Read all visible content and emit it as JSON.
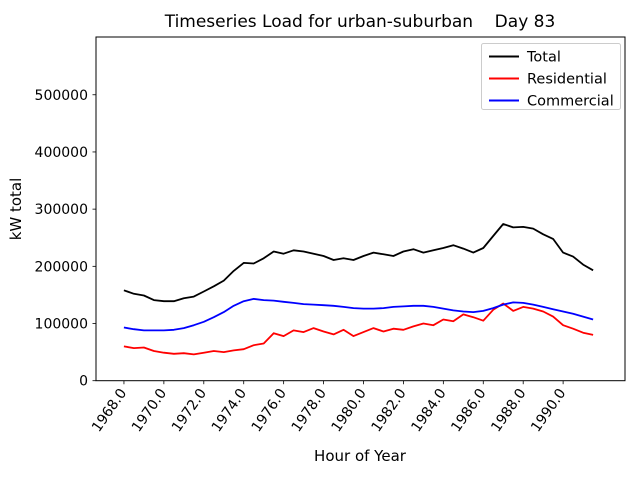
{
  "chart_data": {
    "type": "line",
    "title": "Timeseries Load for urban-suburban    Day 83",
    "xlabel": "Hour of Year",
    "ylabel": "kW total",
    "xlim": [
      1966.6,
      1993.1
    ],
    "ylim": [
      0,
      601000
    ],
    "grid": false,
    "legend": {
      "position": "upper right",
      "entries": [
        "Total",
        "Residential",
        "Commercial"
      ]
    },
    "x": [
      1968,
      1968.5,
      1969,
      1969.5,
      1970,
      1970.5,
      1971,
      1971.5,
      1972,
      1972.5,
      1973,
      1973.5,
      1974,
      1974.5,
      1975,
      1975.5,
      1976,
      1976.5,
      1977,
      1977.5,
      1978,
      1978.5,
      1979,
      1979.5,
      1980,
      1980.5,
      1981,
      1981.5,
      1982,
      1982.5,
      1983,
      1983.5,
      1984,
      1984.5,
      1985,
      1985.5,
      1986,
      1986.5,
      1987,
      1987.5,
      1988,
      1988.5,
      1989,
      1989.5,
      1990,
      1990.5,
      1991,
      1991.5
    ],
    "series": [
      {
        "name": "Total",
        "color": "#000000",
        "values": [
          158000,
          152000,
          149000,
          141000,
          139000,
          139000,
          144000,
          147000,
          156000,
          165000,
          175000,
          192000,
          206000,
          205000,
          214000,
          226000,
          222000,
          228000,
          226000,
          222000,
          218000,
          211000,
          214000,
          211000,
          218000,
          224000,
          221000,
          218000,
          226000,
          230000,
          224000,
          228000,
          232000,
          237000,
          231000,
          224000,
          232000,
          253000,
          274000,
          268000,
          269000,
          266000,
          256000,
          248000,
          224000,
          217000,
          203000,
          193000
        ]
      },
      {
        "name": "Residential",
        "color": "#ff0000",
        "values": [
          60000,
          57000,
          58000,
          52000,
          49000,
          47000,
          48000,
          46000,
          49000,
          52000,
          50000,
          53000,
          55000,
          62000,
          65000,
          83000,
          78000,
          88000,
          85000,
          92000,
          86000,
          81000,
          89000,
          78000,
          85000,
          92000,
          86000,
          91000,
          89000,
          95000,
          100000,
          97000,
          107000,
          104000,
          116000,
          111000,
          105000,
          124000,
          135000,
          122000,
          129000,
          126000,
          121000,
          112000,
          97000,
          91000,
          84000,
          80000
        ]
      },
      {
        "name": "Commercial",
        "color": "#0000ff",
        "values": [
          93000,
          90000,
          88000,
          88000,
          88000,
          89000,
          92000,
          97000,
          103000,
          111000,
          120000,
          131000,
          139000,
          143000,
          141000,
          140000,
          138000,
          136000,
          134000,
          133000,
          132000,
          131000,
          129000,
          127000,
          126000,
          126000,
          127000,
          129000,
          130000,
          131000,
          131000,
          129000,
          126000,
          123000,
          121000,
          120000,
          122000,
          127000,
          133000,
          137000,
          136000,
          133000,
          129000,
          125000,
          121000,
          117000,
          112000,
          107000
        ]
      }
    ],
    "xticks": {
      "values": [
        1968,
        1970,
        1972,
        1974,
        1976,
        1978,
        1980,
        1982,
        1984,
        1986,
        1988,
        1990
      ],
      "labels": [
        "1968.0",
        "1970.0",
        "1972.0",
        "1974.0",
        "1976.0",
        "1978.0",
        "1980.0",
        "1982.0",
        "1984.0",
        "1986.0",
        "1988.0",
        "1990.0"
      ]
    },
    "yticks": {
      "values": [
        0,
        100000,
        200000,
        300000,
        400000,
        500000
      ],
      "labels": [
        "0",
        "100000",
        "200000",
        "300000",
        "400000",
        "500000"
      ]
    }
  }
}
